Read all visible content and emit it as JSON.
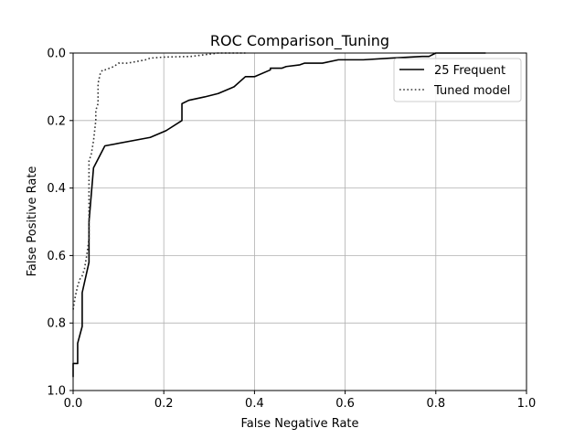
{
  "chart_data": {
    "type": "line",
    "title": "ROC Comparison_Tuning",
    "xlabel": "False Negative Rate",
    "ylabel": "False Positive Rate",
    "xlim": [
      0,
      1
    ],
    "ylim": [
      1,
      0
    ],
    "y_inverted": true,
    "grid": true,
    "legend_position": "top-right",
    "xticks": [
      "0.0",
      "0.2",
      "0.4",
      "0.6",
      "0.8",
      "1.0"
    ],
    "yticks": [
      "0.0",
      "0.2",
      "0.4",
      "0.6",
      "0.8",
      "1.0"
    ],
    "series": [
      {
        "name": "25 Frequent",
        "color": "#000000",
        "dash": "solid",
        "x": [
          0.0,
          0.0,
          0.01,
          0.01,
          0.02,
          0.02,
          0.035,
          0.035,
          0.045,
          0.07,
          0.17,
          0.205,
          0.24,
          0.24,
          0.255,
          0.29,
          0.32,
          0.355,
          0.38,
          0.4,
          0.435,
          0.435,
          0.46,
          0.47,
          0.5,
          0.51,
          0.55,
          0.585,
          0.64,
          0.7,
          0.77,
          0.785,
          0.8,
          0.91
        ],
        "y": [
          0.96,
          0.92,
          0.92,
          0.86,
          0.81,
          0.71,
          0.62,
          0.5,
          0.34,
          0.275,
          0.25,
          0.23,
          0.2,
          0.15,
          0.14,
          0.13,
          0.12,
          0.1,
          0.07,
          0.07,
          0.05,
          0.045,
          0.045,
          0.04,
          0.035,
          0.03,
          0.03,
          0.02,
          0.02,
          0.015,
          0.01,
          0.01,
          0.0,
          0.0
        ]
      },
      {
        "name": "Tuned model",
        "color": "#333333",
        "dash": "dotted",
        "x": [
          0.0,
          0.005,
          0.01,
          0.015,
          0.02,
          0.025,
          0.03,
          0.035,
          0.035,
          0.035,
          0.04,
          0.045,
          0.05,
          0.05,
          0.055,
          0.055,
          0.06,
          0.065,
          0.07,
          0.08,
          0.09,
          0.1,
          0.12,
          0.14,
          0.16,
          0.17,
          0.2,
          0.26,
          0.29,
          0.32,
          0.38
        ],
        "y": [
          0.76,
          0.72,
          0.69,
          0.67,
          0.66,
          0.64,
          0.6,
          0.55,
          0.5,
          0.32,
          0.3,
          0.26,
          0.2,
          0.17,
          0.15,
          0.09,
          0.06,
          0.05,
          0.05,
          0.045,
          0.04,
          0.03,
          0.03,
          0.025,
          0.02,
          0.015,
          0.012,
          0.01,
          0.005,
          0.0,
          0.0
        ]
      }
    ]
  }
}
